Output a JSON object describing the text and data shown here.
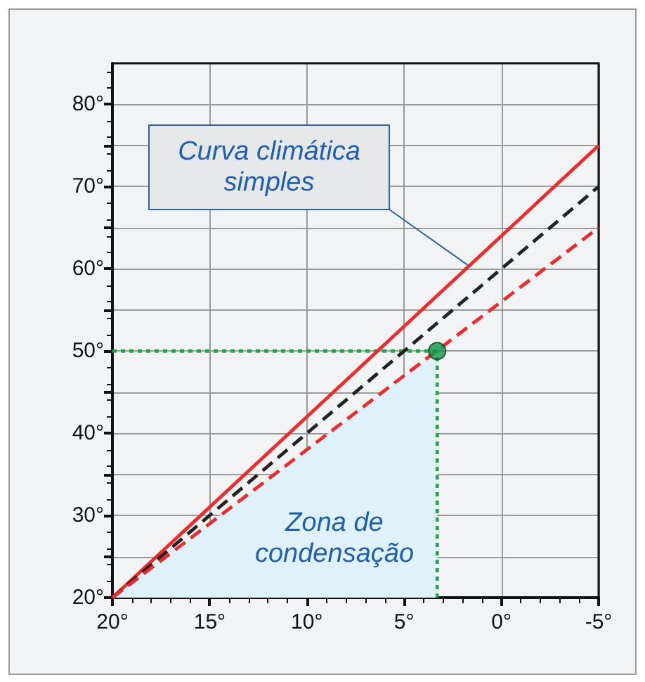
{
  "chart_data": {
    "type": "line",
    "xlim": [
      20,
      -5
    ],
    "xticks": [
      {
        "value": 20,
        "label": "20°"
      },
      {
        "value": 15,
        "label": "15°"
      },
      {
        "value": 10,
        "label": "10°"
      },
      {
        "value": 5,
        "label": "5°"
      },
      {
        "value": 0,
        "label": "0°"
      },
      {
        "value": -5,
        "label": "-5°"
      }
    ],
    "ylim": [
      20,
      85
    ],
    "yticks": [
      {
        "value": 20,
        "label": "20°"
      },
      {
        "value": 25,
        "label": null
      },
      {
        "value": 30,
        "label": "30°"
      },
      {
        "value": 35,
        "label": null
      },
      {
        "value": 40,
        "label": "40°"
      },
      {
        "value": 45,
        "label": null
      },
      {
        "value": 50,
        "label": "50°"
      },
      {
        "value": 55,
        "label": null
      },
      {
        "value": 60,
        "label": "60°"
      },
      {
        "value": 65,
        "label": null
      },
      {
        "value": 70,
        "label": "70°"
      },
      {
        "value": 75,
        "label": null
      },
      {
        "value": 80,
        "label": "80°"
      }
    ],
    "grid": true,
    "marker": "none",
    "series": [
      {
        "type": "area",
        "color": "#dff1fa",
        "x": [
          20,
          3.3
        ],
        "values": [
          20,
          50
        ]
      },
      {
        "type": "line",
        "color": "#22a84a",
        "line_style": "dotted",
        "x": [
          20,
          3.3
        ],
        "values": [
          50,
          50
        ]
      },
      {
        "type": "line",
        "color": "#22a84a",
        "line_style": "dotted",
        "x": [
          3.3,
          3.3
        ],
        "values": [
          20,
          50
        ]
      },
      {
        "type": "line",
        "color": "#ee2a2a",
        "line_style": "solid",
        "x": [
          20,
          -5
        ],
        "values": [
          20,
          75
        ]
      },
      {
        "type": "line",
        "color": "#222222",
        "line_style": "dashed",
        "x": [
          20,
          -5
        ],
        "values": [
          20,
          70
        ]
      },
      {
        "type": "line",
        "color": "#ee2a2a",
        "line_style": "dashed",
        "x": [
          20,
          -5
        ],
        "values": [
          20,
          65
        ]
      },
      {
        "type": "scatter",
        "color": "#0a9a4a",
        "marker": "circle",
        "x": [
          3.3
        ],
        "values": [
          50
        ]
      }
    ],
    "annotations": [
      {
        "text": "Curva climática\nsimples",
        "x": 1.7,
        "y": 60.4
      },
      "Zona de\ncondensação"
    ]
  }
}
